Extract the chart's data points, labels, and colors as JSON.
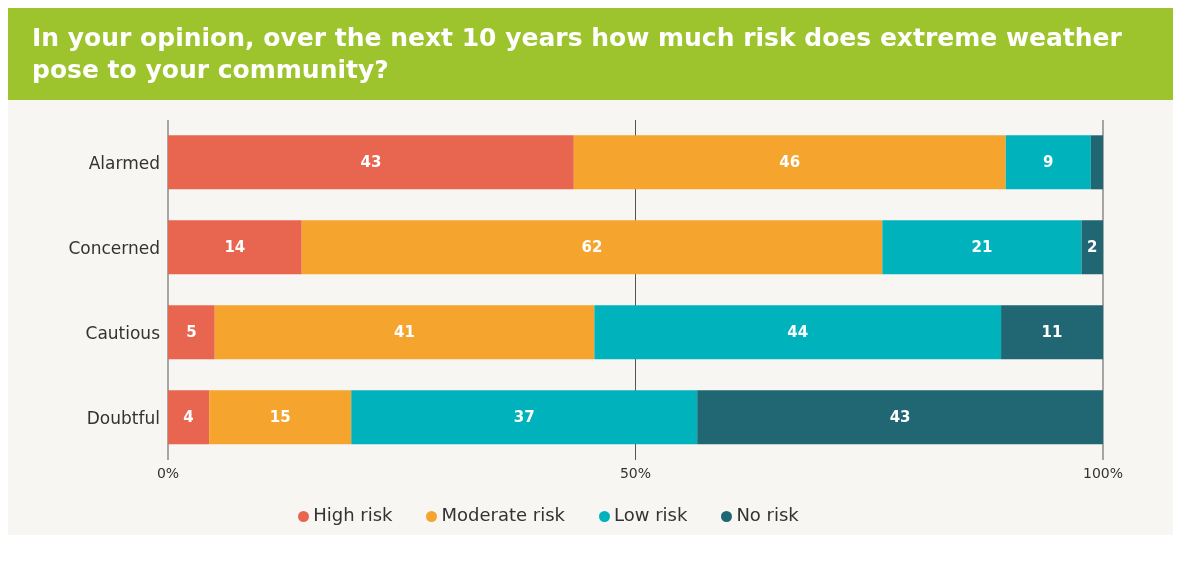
{
  "chart_data": {
    "type": "bar",
    "orientation": "horizontal",
    "stacked": true,
    "title": "In your opinion, over the next 10 years how much risk does extreme weather pose to your community?",
    "categories": [
      "Alarmed",
      "Concerned",
      "Cautious",
      "Doubtful"
    ],
    "series": [
      {
        "name": "High risk",
        "color": "#e8664f",
        "values": [
          43.4,
          14.3,
          5.0,
          4.4
        ],
        "value_labels": [
          "43",
          "14",
          "5",
          "4"
        ]
      },
      {
        "name": "Moderate risk",
        "color": "#f5a52e",
        "values": [
          46.2,
          62.1,
          40.6,
          15.2
        ],
        "value_labels": [
          "46",
          "62",
          "41",
          "15"
        ]
      },
      {
        "name": "Low risk",
        "color": "#00b2bc",
        "values": [
          9.1,
          21.3,
          43.5,
          37.0
        ],
        "value_labels": [
          "9",
          "21",
          "44",
          "37"
        ]
      },
      {
        "name": "No risk",
        "color": "#216673",
        "values": [
          1.3,
          2.3,
          10.9,
          43.4
        ],
        "value_labels": [
          null,
          "2",
          "11",
          "43"
        ]
      }
    ],
    "xlim": [
      0,
      100
    ],
    "xticks": [
      {
        "value": 0,
        "label": "0%"
      },
      {
        "value": 50,
        "label": "50%"
      },
      {
        "value": 100,
        "label": "100%"
      }
    ],
    "grid": "x",
    "legend": "bottom"
  }
}
